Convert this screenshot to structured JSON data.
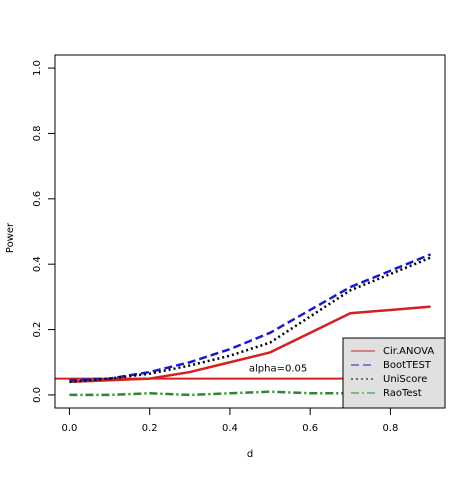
{
  "chart_data": {
    "type": "line",
    "x_label": "d",
    "y_label": "Power",
    "x": [
      0,
      0.1,
      0.2,
      0.3,
      0.4,
      0.5,
      0.6,
      0.7,
      0.8,
      0.9
    ],
    "series": [
      {
        "name": "Cir.ANOVA",
        "color": "#d42020",
        "dash": "solid",
        "values": [
          0.04,
          0.045,
          0.05,
          0.07,
          0.1,
          0.13,
          0.19,
          0.25,
          0.26,
          0.27
        ]
      },
      {
        "name": "BootTEST",
        "color": "#1a1acc",
        "dash": "dashed",
        "values": [
          0.045,
          0.05,
          0.07,
          0.1,
          0.14,
          0.19,
          0.26,
          0.33,
          0.38,
          0.43
        ]
      },
      {
        "name": "UniScore",
        "color": "#000000",
        "dash": "dotted",
        "values": [
          0.04,
          0.05,
          0.065,
          0.09,
          0.12,
          0.16,
          0.24,
          0.32,
          0.37,
          0.42
        ]
      },
      {
        "name": "RaoTest",
        "color": "#2a8a2a",
        "dash": "dashdot",
        "values": [
          0.0,
          0.0,
          0.005,
          0.0,
          0.005,
          0.01,
          0.005,
          0.005,
          0.0,
          0.0
        ]
      }
    ],
    "reference_line": {
      "value": 0.05,
      "label": "alpha=0.05",
      "color": "#d42020"
    },
    "xlim": [
      -0.036,
      0.936
    ],
    "ylim": [
      -0.04,
      1.04
    ],
    "xticks": [
      {
        "value": 0,
        "label": "0.0"
      },
      0.2,
      0.4,
      0.6,
      0.8
    ],
    "yticks": [
      {
        "value": 0,
        "label": "0.0"
      },
      0.2,
      0.4,
      0.6,
      0.8,
      {
        "value": 1,
        "label": "1.0"
      }
    ],
    "legend": "bottom-right"
  }
}
